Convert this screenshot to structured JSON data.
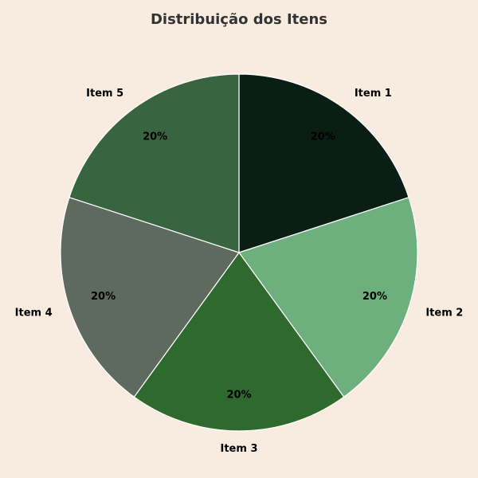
{
  "chart_data": {
    "type": "pie",
    "title": "Distribuição dos Itens",
    "categories": [
      "Item 1",
      "Item 2",
      "Item 3",
      "Item 4",
      "Item 5"
    ],
    "values": [
      20,
      20,
      20,
      20,
      20
    ],
    "percent_labels": [
      "20%",
      "20%",
      "20%",
      "20%",
      "20%"
    ],
    "colors": [
      "#0b1e15",
      "#6daf7d",
      "#2e6a2e",
      "#5e6a5e",
      "#396440"
    ],
    "start_angle_deg": 90,
    "direction": "clockwise",
    "edge_color": "#ffffff",
    "legend": "none"
  },
  "page": {
    "background": "#f8ece0"
  }
}
